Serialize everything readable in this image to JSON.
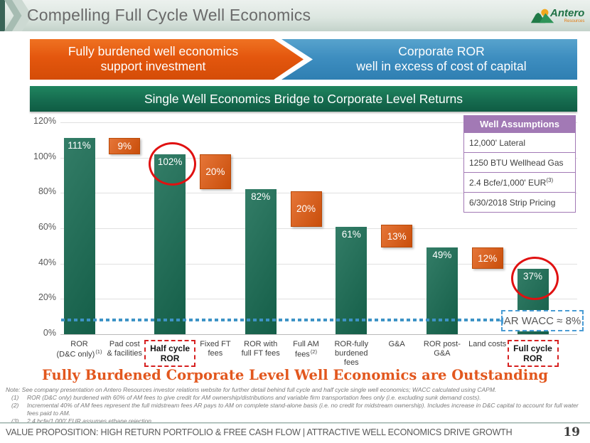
{
  "header": {
    "title": "Compelling Full Cycle Well Economics",
    "logo": {
      "name": "Antero",
      "sub": "Resources"
    }
  },
  "banners": {
    "orange_line1": "Fully burdened well economics",
    "orange_line2": "support investment",
    "blue_line1": "Corporate ROR",
    "blue_line2": "well in excess of cost of capital",
    "green": "Single Well Economics Bridge to Corporate Level Returns"
  },
  "chart_data": {
    "type": "bar",
    "subtype": "waterfall",
    "title": "Single Well Economics Bridge to Corporate Level Returns",
    "xlabel": "",
    "ylabel": "",
    "ylim": [
      0,
      120
    ],
    "ytick_step": 20,
    "ytick_format": "percent",
    "grid": true,
    "legend": "none",
    "colors": {
      "result": "#176b52",
      "deduction": "#e0570c",
      "wacc_line": "#3d93c6",
      "circle": "#e01111"
    },
    "categories": [
      {
        "text": "ROR\n(D&C only)",
        "sup": "(1)"
      },
      {
        "text": "Pad cost\n& facilities"
      },
      {
        "text": "Half cycle\nROR",
        "emph": true
      },
      {
        "text": "Fixed FT\nfees"
      },
      {
        "text": "ROR with\nfull FT fees"
      },
      {
        "text": "Full AM\nfees",
        "sup": "(2)"
      },
      {
        "text": "ROR-fully\nburdened\nfees"
      },
      {
        "text": "G&A"
      },
      {
        "text": "ROR post-\nG&A"
      },
      {
        "text": "Land costs"
      },
      {
        "text": "Full cycle\nROR",
        "emph": true
      }
    ],
    "bars": [
      {
        "value": "111%",
        "from": 0,
        "to": 111,
        "type": "result"
      },
      {
        "value": "9%",
        "from": 102,
        "to": 111,
        "type": "deduction"
      },
      {
        "value": "102%",
        "from": 0,
        "to": 102,
        "type": "result",
        "circled": true
      },
      {
        "value": "20%",
        "from": 82,
        "to": 102,
        "type": "deduction"
      },
      {
        "value": "82%",
        "from": 0,
        "to": 82,
        "type": "result"
      },
      {
        "value": "20%",
        "from": 61,
        "to": 81,
        "type": "deduction"
      },
      {
        "value": "61%",
        "from": 0,
        "to": 61,
        "type": "result"
      },
      {
        "value": "13%",
        "from": 49,
        "to": 62,
        "type": "deduction"
      },
      {
        "value": "49%",
        "from": 0,
        "to": 49,
        "type": "result"
      },
      {
        "value": "12%",
        "from": 37,
        "to": 49,
        "type": "deduction"
      },
      {
        "value": "37%",
        "from": 0,
        "to": 37,
        "type": "result",
        "circled": true
      }
    ],
    "wacc": {
      "value": 8,
      "label": "AR WACC ≈ 8%"
    }
  },
  "well_assumptions": {
    "title": "Well Assumptions",
    "rows": [
      {
        "text": "12,000' Lateral",
        "sup": ""
      },
      {
        "text": "1250 BTU Wellhead Gas",
        "sup": ""
      },
      {
        "text": "2.4 Bcfe/1,000' EUR",
        "sup": "(3)"
      },
      {
        "text": "6/30/2018 Strip Pricing",
        "sup": ""
      }
    ]
  },
  "headline": "Fully Burdened Corporate Level Well Economics are Outstanding",
  "notes": {
    "intro": "Note: See company presentation on Antero Resources investor  relations website for further detail behind full cycle and half cycle single well economics; WACC calculated using CAPM.",
    "items": [
      {
        "marker": "(1)",
        "text": "ROR (D&C only) burdened with 60% of AM fees to give credit for AM ownership/distributions and variable firm transportation fees only (i.e. excluding sunk demand costs)."
      },
      {
        "marker": "(2)",
        "text": "Incremental 40% of AM fees represent the full midstream fees AR pays to AM on complete stand-alone basis (i.e. no credit for midstream ownership).  Includes increase in D&C capital to account for full water fees paid to AM."
      },
      {
        "marker": "(3)",
        "text": "2.4 bcfe/1,000' EUR assumes ethane rejection."
      }
    ]
  },
  "footer": {
    "text": "VALUE PROPOSITION: HIGH RETURN PORTFOLIO & FREE CASH FLOW | ATTRACTIVE WELL ECONOMICS DRIVE GROWTH",
    "page": "19"
  }
}
